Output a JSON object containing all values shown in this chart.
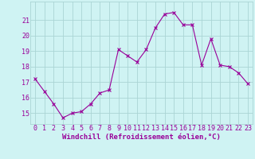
{
  "x": [
    0,
    1,
    2,
    3,
    4,
    5,
    6,
    7,
    8,
    9,
    10,
    11,
    12,
    13,
    14,
    15,
    16,
    17,
    18,
    19,
    20,
    21,
    22,
    23
  ],
  "y": [
    17.2,
    16.4,
    15.6,
    14.7,
    15.0,
    15.1,
    15.6,
    16.3,
    16.5,
    19.1,
    18.7,
    18.3,
    19.1,
    20.5,
    21.4,
    21.5,
    20.7,
    20.7,
    18.1,
    19.8,
    18.1,
    18.0,
    17.6,
    16.9
  ],
  "line_color": "#990099",
  "marker": "x",
  "marker_size": 3,
  "line_width": 0.8,
  "bg_color": "#cff3f3",
  "grid_color": "#aad5d5",
  "xlabel": "Windchill (Refroidissement éolien,°C)",
  "xlabel_color": "#990099",
  "xlabel_fontsize": 6.5,
  "tick_color": "#990099",
  "tick_fontsize": 6.0,
  "yticks": [
    15,
    16,
    17,
    18,
    19,
    20,
    21
  ],
  "ylim": [
    14.3,
    22.2
  ],
  "xlim": [
    -0.5,
    23.5
  ],
  "xtick_labels": [
    "0",
    "1",
    "2",
    "3",
    "4",
    "5",
    "6",
    "7",
    "8",
    "9",
    "10",
    "11",
    "12",
    "13",
    "14",
    "15",
    "16",
    "17",
    "18",
    "19",
    "20",
    "21",
    "22",
    "23"
  ]
}
